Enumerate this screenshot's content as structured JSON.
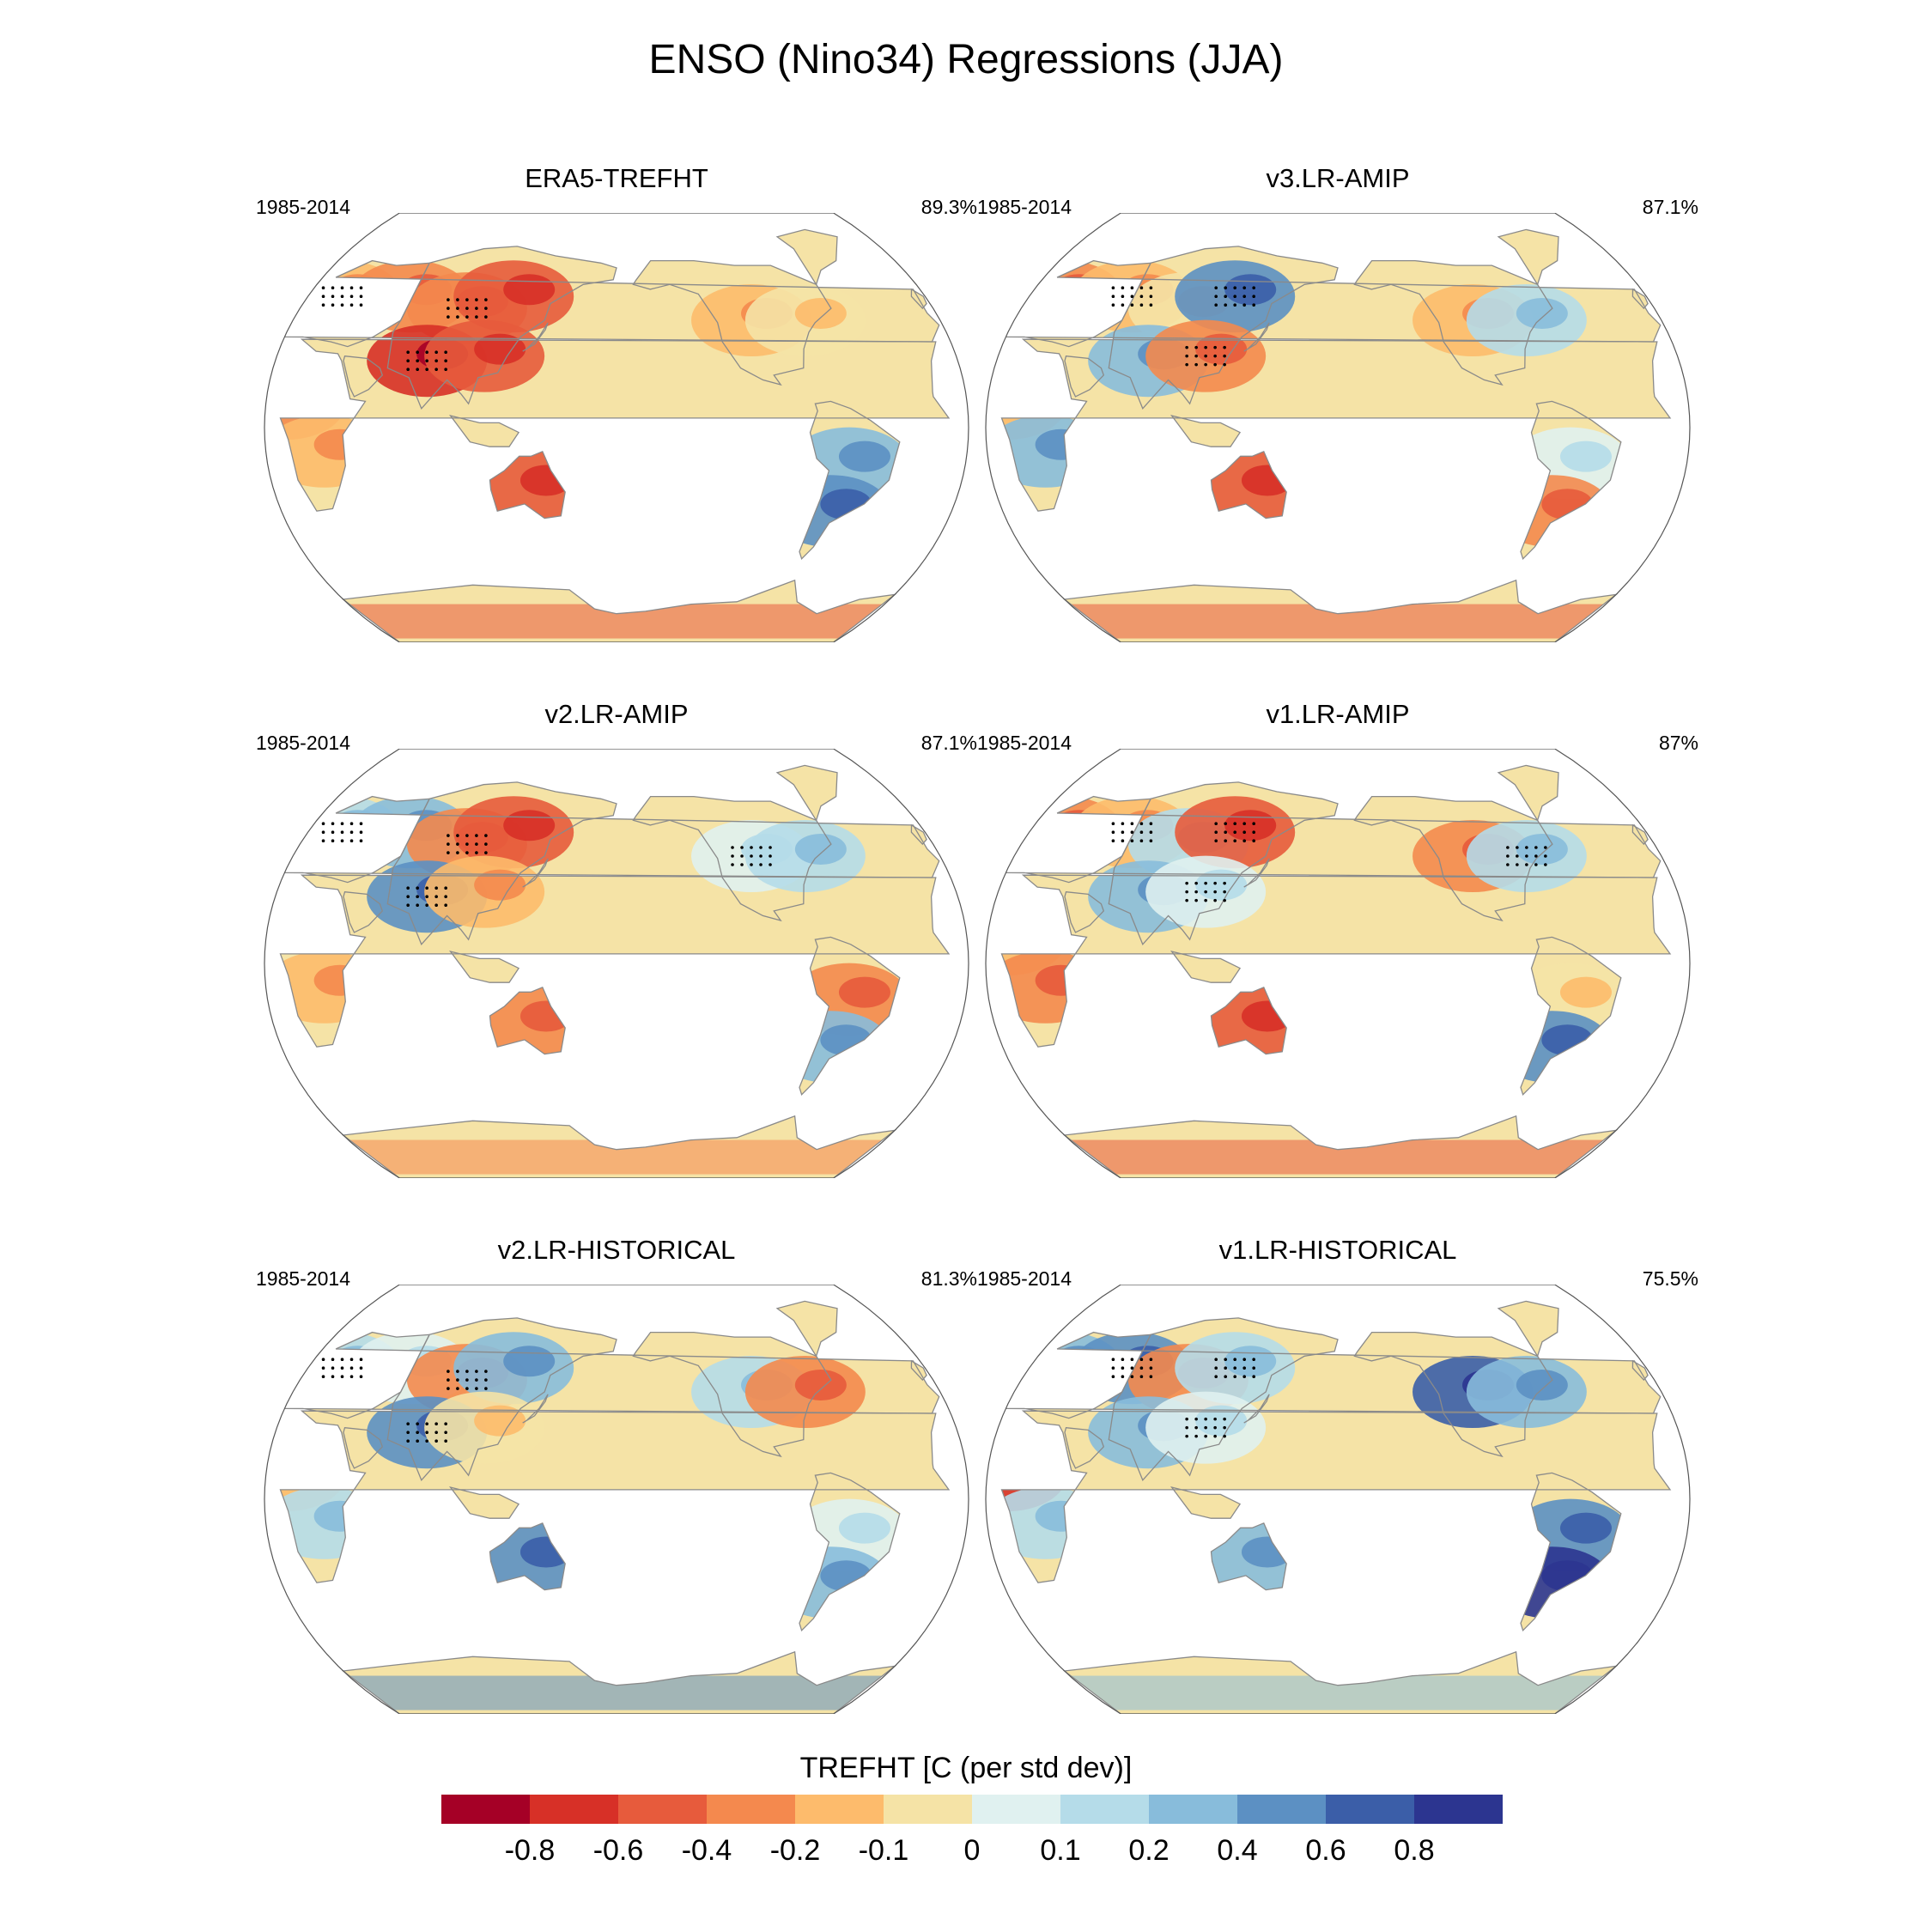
{
  "figure_title": "ENSO (Nino34) Regressions (JJA)",
  "colorbar_title": "TREFHT [C (per std dev)]",
  "colorbar_colors": [
    "#a50026",
    "#d73027",
    "#e75b3c",
    "#f4894e",
    "#fdbb6c",
    "#f5e3a6",
    "#e0f1f0",
    "#b5dce9",
    "#88bcdb",
    "#5c90c3",
    "#3b5ea8",
    "#2c3590"
  ],
  "colorbar_labels": [
    "-0.8",
    "-0.6",
    "-0.4",
    "-0.2",
    "-0.1",
    "0",
    "0.1",
    "0.2",
    "0.4",
    "0.6",
    "0.8"
  ],
  "chart_data": [
    {
      "type": "heatmap",
      "title": "ERA5-TREFHT",
      "period": "1985-2014",
      "pattern_correlation": "89.3%",
      "projection": "robinson",
      "central_longitude": 180,
      "variable": "TREFHT"
    },
    {
      "type": "heatmap",
      "title": "v3.LR-AMIP",
      "period": "1985-2014",
      "pattern_correlation": "87.1%",
      "projection": "robinson",
      "central_longitude": 180,
      "variable": "TREFHT"
    },
    {
      "type": "heatmap",
      "title": "v2.LR-AMIP",
      "period": "1985-2014",
      "pattern_correlation": "87.1%",
      "projection": "robinson",
      "central_longitude": 180,
      "variable": "TREFHT"
    },
    {
      "type": "heatmap",
      "title": "v1.LR-AMIP",
      "period": "1985-2014",
      "pattern_correlation": "87%",
      "projection": "robinson",
      "central_longitude": 180,
      "variable": "TREFHT"
    },
    {
      "type": "heatmap",
      "title": "v2.LR-HISTORICAL",
      "period": "1985-2014",
      "pattern_correlation": "81.3%",
      "projection": "robinson",
      "central_longitude": 180,
      "variable": "TREFHT"
    },
    {
      "type": "heatmap",
      "title": "v1.LR-HISTORICAL",
      "period": "1985-2014",
      "pattern_correlation": "75.5%",
      "projection": "robinson",
      "central_longitude": 180,
      "variable": "TREFHT"
    }
  ]
}
